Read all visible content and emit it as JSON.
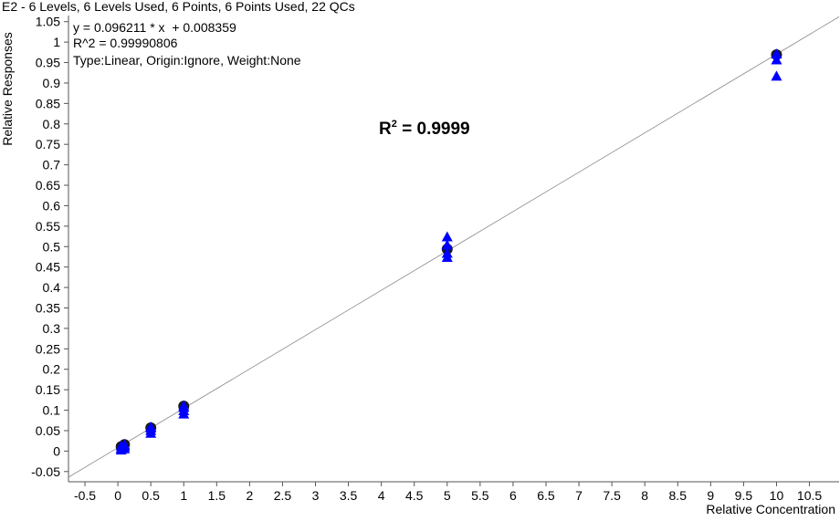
{
  "chart_data": {
    "type": "scatter",
    "title": "E2 - 6 Levels, 6 Levels Used, 6 Points, 6 Points Used, 22 QCs",
    "xlabel": "Relative Concentration",
    "ylabel": "Relative Responses",
    "annotations": {
      "equation": "y = 0.096211 * x  + 0.008359",
      "r2_line": "R^2 = 0.99990806",
      "fit_info": "Type:Linear, Origin:Ignore, Weight:None",
      "r2_big_base": "R",
      "r2_big_sup": "2",
      "r2_big_value": " = 0.9999"
    },
    "fit_line": {
      "slope": 0.096211,
      "intercept": 0.008359
    },
    "xlim": [
      -0.75,
      10.95
    ],
    "ylim": [
      -0.075,
      1.065
    ],
    "x_ticks": [
      "-0.5",
      "0",
      "0.5",
      "1",
      "1.5",
      "2",
      "2.5",
      "3",
      "3.5",
      "4",
      "4.5",
      "5",
      "5.5",
      "6",
      "6.5",
      "7",
      "7.5",
      "8",
      "8.5",
      "9",
      "9.5",
      "10",
      "10.5"
    ],
    "y_ticks": [
      "-0.05",
      "0",
      "0.05",
      "0.1",
      "0.15",
      "0.2",
      "0.25",
      "0.3",
      "0.35",
      "0.4",
      "0.45",
      "0.5",
      "0.55",
      "0.6",
      "0.65",
      "0.7",
      "0.75",
      "0.8",
      "0.85",
      "0.9",
      "0.95",
      "1",
      "1.05"
    ],
    "grid": false,
    "series": [
      {
        "marker": "circle",
        "color": "#1a1a1a",
        "x": [
          0.05,
          0.1,
          0.5,
          1,
          5,
          10
        ],
        "y": [
          0.011,
          0.016,
          0.057,
          0.11,
          0.494,
          0.969
        ]
      },
      {
        "marker": "triangle",
        "color": "#0000ff",
        "x": [
          0.05,
          0.05,
          0.05,
          0.1,
          0.1,
          0.1,
          0.1,
          0.5,
          0.5,
          0.5,
          0.5,
          1,
          1,
          1,
          1,
          5,
          5,
          5,
          5,
          10,
          10,
          10
        ],
        "y": [
          0.004,
          0.008,
          0.014,
          0.007,
          0.012,
          0.017,
          0.015,
          0.045,
          0.052,
          0.058,
          0.06,
          0.092,
          0.1,
          0.108,
          0.112,
          0.475,
          0.485,
          0.505,
          0.525,
          0.918,
          0.958,
          0.972
        ]
      }
    ]
  }
}
